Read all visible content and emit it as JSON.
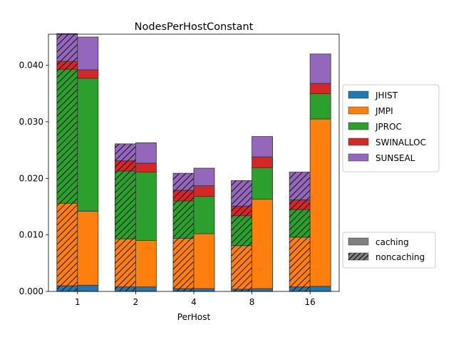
{
  "chart_data": {
    "type": "bar",
    "title": "NodesPerHostConstant",
    "xlabel": "PerHost",
    "ylabel": "",
    "ylim": [
      0,
      0.0455
    ],
    "yticks": [
      0.0,
      0.01,
      0.02,
      0.03,
      0.04
    ],
    "ytick_labels": [
      "0.000",
      "0.010",
      "0.020",
      "0.030",
      "0.040"
    ],
    "categories": [
      "1",
      "2",
      "4",
      "8",
      "16"
    ],
    "stacked": true,
    "grouped_by": [
      "noncaching",
      "caching"
    ],
    "series": [
      {
        "name": "JHIST",
        "color": "#1f77b4",
        "caching": [
          0.0011,
          0.0008,
          0.0005,
          0.0005,
          0.0009
        ],
        "noncaching": [
          0.001,
          0.0008,
          0.0005,
          0.0004,
          0.0008
        ]
      },
      {
        "name": "JMPI",
        "color": "#ff7f0e",
        "caching": [
          0.0131,
          0.0082,
          0.0097,
          0.0158,
          0.0296
        ],
        "noncaching": [
          0.0146,
          0.0085,
          0.0089,
          0.0077,
          0.0088
        ]
      },
      {
        "name": "JPROC",
        "color": "#2ca02c",
        "caching": [
          0.0235,
          0.0121,
          0.0066,
          0.0056,
          0.0045
        ],
        "noncaching": [
          0.0237,
          0.012,
          0.0066,
          0.0053,
          0.0049
        ]
      },
      {
        "name": "SWINALLOC",
        "color": "#d62728",
        "caching": [
          0.0015,
          0.0016,
          0.0019,
          0.0019,
          0.0018
        ],
        "noncaching": [
          0.0014,
          0.0018,
          0.0019,
          0.0017,
          0.0017
        ]
      },
      {
        "name": "SUNSEAL",
        "color": "#9467bd",
        "caching": [
          0.0058,
          0.0036,
          0.0031,
          0.0036,
          0.0052
        ],
        "noncaching": [
          0.0049,
          0.003,
          0.003,
          0.0045,
          0.0049
        ]
      }
    ],
    "legend_series": {
      "position": "right-center",
      "entries": [
        "JHIST",
        "JMPI",
        "JPROC",
        "SWINALLOC",
        "SUNSEAL"
      ]
    },
    "legend_hatch": {
      "position": "right-bottom",
      "entries": [
        {
          "label": "caching",
          "hatch": false
        },
        {
          "label": "noncaching",
          "hatch": true
        }
      ]
    },
    "grid": false
  }
}
